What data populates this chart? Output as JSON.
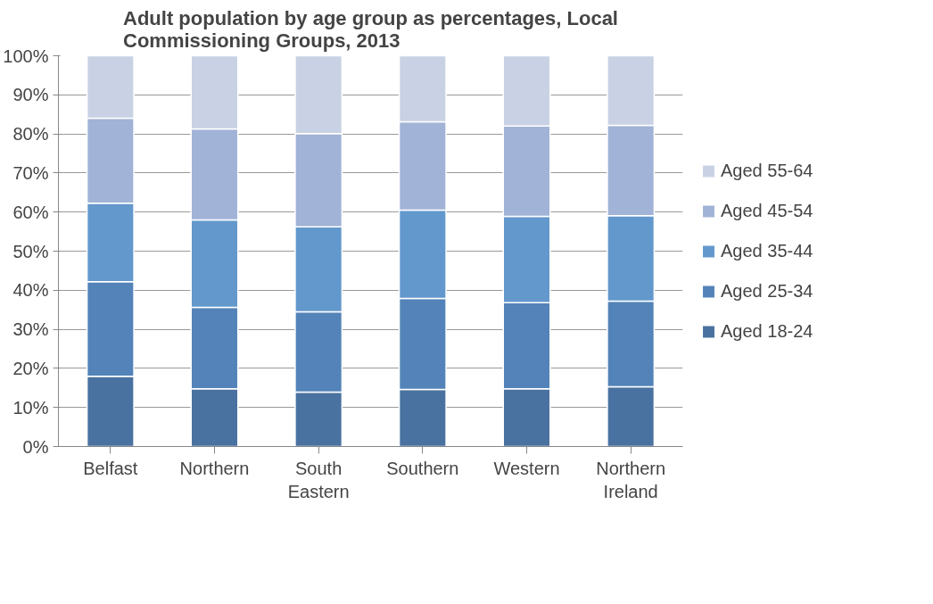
{
  "chart_data": {
    "type": "bar",
    "stacked": true,
    "title": "Adult population by age group as percentages, Local Commissioning Groups, 2013",
    "categories": [
      "Belfast",
      "Northern",
      "South Eastern",
      "Southern",
      "Western",
      "Northern Ireland"
    ],
    "series": [
      {
        "name": "Aged 18-24",
        "color": "#4a72a0",
        "values": [
          18.0,
          14.8,
          13.9,
          14.6,
          14.8,
          15.3
        ]
      },
      {
        "name": "Aged 25-34",
        "color": "#5383b8",
        "values": [
          24.2,
          20.8,
          20.6,
          23.3,
          22.0,
          21.9
        ]
      },
      {
        "name": "Aged 35-44",
        "color": "#6398cc",
        "values": [
          20.1,
          22.4,
          21.7,
          22.6,
          22.1,
          21.9
        ]
      },
      {
        "name": "Aged 45-54",
        "color": "#a1b3d6",
        "values": [
          21.7,
          23.3,
          23.9,
          22.6,
          23.1,
          23.1
        ]
      },
      {
        "name": "Aged 55-64",
        "color": "#c8d2e4",
        "values": [
          16.0,
          18.7,
          19.9,
          16.9,
          18.0,
          17.8
        ]
      }
    ],
    "ylim": [
      0,
      100
    ],
    "yticks": [
      {
        "value": 0,
        "label": "0%"
      },
      {
        "value": 10,
        "label": "10%"
      },
      {
        "value": 20,
        "label": "20%"
      },
      {
        "value": 30,
        "label": "30%"
      },
      {
        "value": 40,
        "label": "40%"
      },
      {
        "value": 50,
        "label": "50%"
      },
      {
        "value": 60,
        "label": "60%"
      },
      {
        "value": 70,
        "label": "70%"
      },
      {
        "value": 80,
        "label": "80%"
      },
      {
        "value": 90,
        "label": "90%"
      },
      {
        "value": 100,
        "label": "100%"
      }
    ],
    "grid": "y",
    "legend": "right"
  }
}
